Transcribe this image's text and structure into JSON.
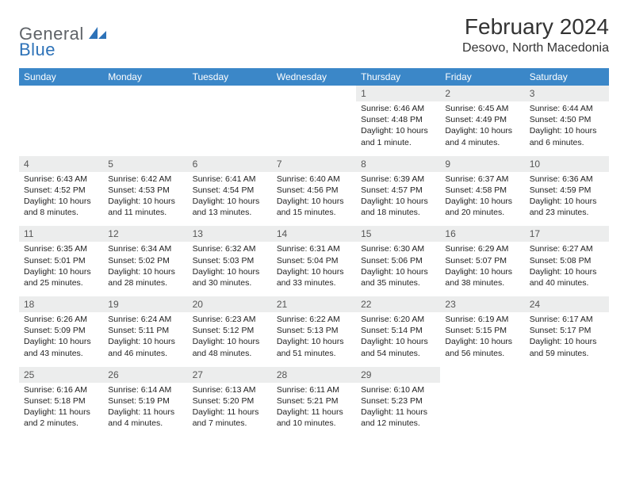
{
  "logo": {
    "part1": "General",
    "part2": "Blue"
  },
  "title": "February 2024",
  "location": "Desovo, North Macedonia",
  "colors": {
    "header_bg": "#3b87c8",
    "header_text": "#ffffff",
    "daynum_bg": "#eceded",
    "rule": "#3b87c8",
    "logo_gray": "#5f6368",
    "logo_blue": "#2d72b8"
  },
  "daysOfWeek": [
    "Sunday",
    "Monday",
    "Tuesday",
    "Wednesday",
    "Thursday",
    "Friday",
    "Saturday"
  ],
  "weeks": [
    [
      {
        "n": "",
        "sr": "",
        "ss": "",
        "dl": ""
      },
      {
        "n": "",
        "sr": "",
        "ss": "",
        "dl": ""
      },
      {
        "n": "",
        "sr": "",
        "ss": "",
        "dl": ""
      },
      {
        "n": "",
        "sr": "",
        "ss": "",
        "dl": ""
      },
      {
        "n": "1",
        "sr": "Sunrise: 6:46 AM",
        "ss": "Sunset: 4:48 PM",
        "dl": "Daylight: 10 hours and 1 minute."
      },
      {
        "n": "2",
        "sr": "Sunrise: 6:45 AM",
        "ss": "Sunset: 4:49 PM",
        "dl": "Daylight: 10 hours and 4 minutes."
      },
      {
        "n": "3",
        "sr": "Sunrise: 6:44 AM",
        "ss": "Sunset: 4:50 PM",
        "dl": "Daylight: 10 hours and 6 minutes."
      }
    ],
    [
      {
        "n": "4",
        "sr": "Sunrise: 6:43 AM",
        "ss": "Sunset: 4:52 PM",
        "dl": "Daylight: 10 hours and 8 minutes."
      },
      {
        "n": "5",
        "sr": "Sunrise: 6:42 AM",
        "ss": "Sunset: 4:53 PM",
        "dl": "Daylight: 10 hours and 11 minutes."
      },
      {
        "n": "6",
        "sr": "Sunrise: 6:41 AM",
        "ss": "Sunset: 4:54 PM",
        "dl": "Daylight: 10 hours and 13 minutes."
      },
      {
        "n": "7",
        "sr": "Sunrise: 6:40 AM",
        "ss": "Sunset: 4:56 PM",
        "dl": "Daylight: 10 hours and 15 minutes."
      },
      {
        "n": "8",
        "sr": "Sunrise: 6:39 AM",
        "ss": "Sunset: 4:57 PM",
        "dl": "Daylight: 10 hours and 18 minutes."
      },
      {
        "n": "9",
        "sr": "Sunrise: 6:37 AM",
        "ss": "Sunset: 4:58 PM",
        "dl": "Daylight: 10 hours and 20 minutes."
      },
      {
        "n": "10",
        "sr": "Sunrise: 6:36 AM",
        "ss": "Sunset: 4:59 PM",
        "dl": "Daylight: 10 hours and 23 minutes."
      }
    ],
    [
      {
        "n": "11",
        "sr": "Sunrise: 6:35 AM",
        "ss": "Sunset: 5:01 PM",
        "dl": "Daylight: 10 hours and 25 minutes."
      },
      {
        "n": "12",
        "sr": "Sunrise: 6:34 AM",
        "ss": "Sunset: 5:02 PM",
        "dl": "Daylight: 10 hours and 28 minutes."
      },
      {
        "n": "13",
        "sr": "Sunrise: 6:32 AM",
        "ss": "Sunset: 5:03 PM",
        "dl": "Daylight: 10 hours and 30 minutes."
      },
      {
        "n": "14",
        "sr": "Sunrise: 6:31 AM",
        "ss": "Sunset: 5:04 PM",
        "dl": "Daylight: 10 hours and 33 minutes."
      },
      {
        "n": "15",
        "sr": "Sunrise: 6:30 AM",
        "ss": "Sunset: 5:06 PM",
        "dl": "Daylight: 10 hours and 35 minutes."
      },
      {
        "n": "16",
        "sr": "Sunrise: 6:29 AM",
        "ss": "Sunset: 5:07 PM",
        "dl": "Daylight: 10 hours and 38 minutes."
      },
      {
        "n": "17",
        "sr": "Sunrise: 6:27 AM",
        "ss": "Sunset: 5:08 PM",
        "dl": "Daylight: 10 hours and 40 minutes."
      }
    ],
    [
      {
        "n": "18",
        "sr": "Sunrise: 6:26 AM",
        "ss": "Sunset: 5:09 PM",
        "dl": "Daylight: 10 hours and 43 minutes."
      },
      {
        "n": "19",
        "sr": "Sunrise: 6:24 AM",
        "ss": "Sunset: 5:11 PM",
        "dl": "Daylight: 10 hours and 46 minutes."
      },
      {
        "n": "20",
        "sr": "Sunrise: 6:23 AM",
        "ss": "Sunset: 5:12 PM",
        "dl": "Daylight: 10 hours and 48 minutes."
      },
      {
        "n": "21",
        "sr": "Sunrise: 6:22 AM",
        "ss": "Sunset: 5:13 PM",
        "dl": "Daylight: 10 hours and 51 minutes."
      },
      {
        "n": "22",
        "sr": "Sunrise: 6:20 AM",
        "ss": "Sunset: 5:14 PM",
        "dl": "Daylight: 10 hours and 54 minutes."
      },
      {
        "n": "23",
        "sr": "Sunrise: 6:19 AM",
        "ss": "Sunset: 5:15 PM",
        "dl": "Daylight: 10 hours and 56 minutes."
      },
      {
        "n": "24",
        "sr": "Sunrise: 6:17 AM",
        "ss": "Sunset: 5:17 PM",
        "dl": "Daylight: 10 hours and 59 minutes."
      }
    ],
    [
      {
        "n": "25",
        "sr": "Sunrise: 6:16 AM",
        "ss": "Sunset: 5:18 PM",
        "dl": "Daylight: 11 hours and 2 minutes."
      },
      {
        "n": "26",
        "sr": "Sunrise: 6:14 AM",
        "ss": "Sunset: 5:19 PM",
        "dl": "Daylight: 11 hours and 4 minutes."
      },
      {
        "n": "27",
        "sr": "Sunrise: 6:13 AM",
        "ss": "Sunset: 5:20 PM",
        "dl": "Daylight: 11 hours and 7 minutes."
      },
      {
        "n": "28",
        "sr": "Sunrise: 6:11 AM",
        "ss": "Sunset: 5:21 PM",
        "dl": "Daylight: 11 hours and 10 minutes."
      },
      {
        "n": "29",
        "sr": "Sunrise: 6:10 AM",
        "ss": "Sunset: 5:23 PM",
        "dl": "Daylight: 11 hours and 12 minutes."
      },
      {
        "n": "",
        "sr": "",
        "ss": "",
        "dl": ""
      },
      {
        "n": "",
        "sr": "",
        "ss": "",
        "dl": ""
      }
    ]
  ]
}
